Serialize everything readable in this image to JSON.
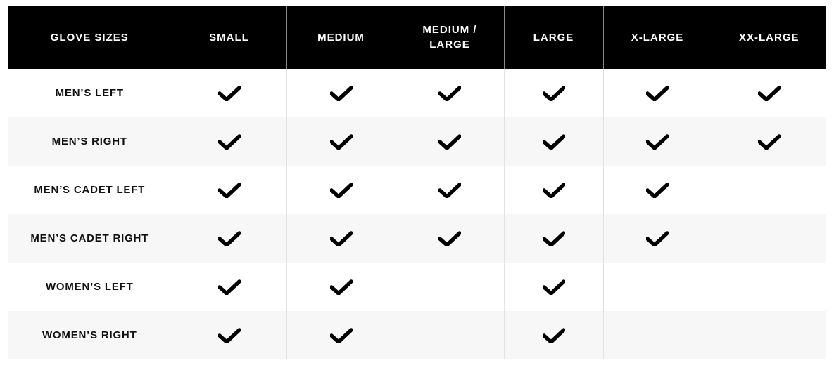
{
  "table": {
    "headers": [
      "GLOVE SIZES",
      "SMALL",
      "MEDIUM",
      "MEDIUM / LARGE",
      "LARGE",
      "X-LARGE",
      "XX-LARGE"
    ],
    "rows": [
      {
        "label": "MEN’S LEFT",
        "available": [
          true,
          true,
          true,
          true,
          true,
          true
        ]
      },
      {
        "label": "MEN’S RIGHT",
        "available": [
          true,
          true,
          true,
          true,
          true,
          true
        ]
      },
      {
        "label": "MEN’S CADET LEFT",
        "available": [
          true,
          true,
          true,
          true,
          true,
          false
        ]
      },
      {
        "label": "MEN’S CADET RIGHT",
        "available": [
          true,
          true,
          true,
          true,
          true,
          false
        ]
      },
      {
        "label": "WOMEN’S LEFT",
        "available": [
          true,
          true,
          false,
          true,
          false,
          false
        ]
      },
      {
        "label": "WOMEN’S RIGHT",
        "available": [
          true,
          true,
          false,
          true,
          false,
          false
        ]
      }
    ],
    "check_icon": "checkmark-icon",
    "colors": {
      "header_bg": "#000000",
      "header_text": "#ffffff",
      "alt_row_bg": "#f7f7f7"
    }
  }
}
